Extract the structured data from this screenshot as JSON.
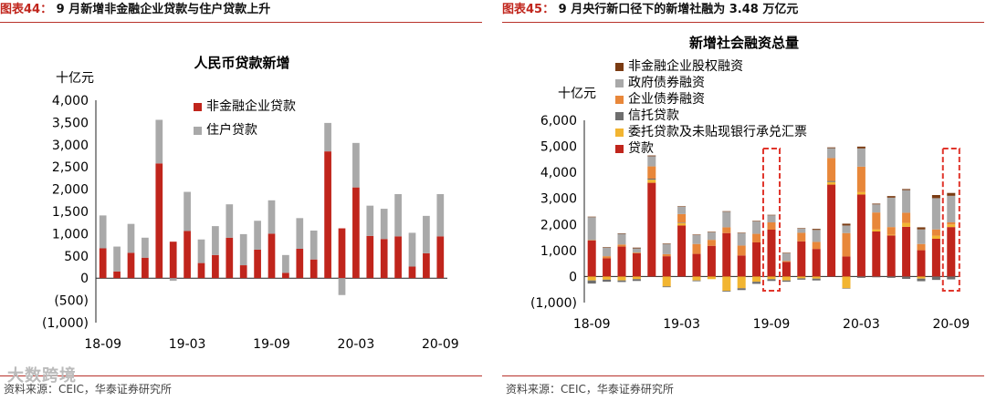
{
  "left_header": {
    "fig": "图表44：",
    "title": "9 月新增非金融企业贷款与住户贷款上升"
  },
  "right_header": {
    "fig": "图表45：",
    "title": "9 月央行新口径下的新增社融为 3.48 万亿元"
  },
  "left_source": "资料来源：CEIC，华泰证券研究所",
  "right_source": "资料来源：CEIC，华泰证券研究所",
  "watermark": "大数跨境",
  "colors": {
    "red": "#c0251c",
    "gray": "#a9a9a9",
    "dark_brown": "#7a3b12",
    "orange": "#e8873a",
    "dark_gray": "#6e6e6e",
    "yellow": "#f2b531",
    "highlight": "#e0352b",
    "accent": "#c0251c"
  },
  "chart_data": [
    {
      "type": "bar",
      "stacked": true,
      "title": "人民币贷款新增",
      "unit": "十亿元",
      "ylim": [
        -1000,
        4000
      ],
      "yticks": [
        "(1,000)",
        "(500)",
        "0",
        "500",
        "1,000",
        "1,500",
        "2,000",
        "2,500",
        "3,000",
        "3,500",
        "4,000"
      ],
      "xticks": [
        "18-09",
        "19-03",
        "19-09",
        "20-03",
        "20-09"
      ],
      "x": [
        "18-09",
        "18-10",
        "18-11",
        "18-12",
        "19-01",
        "19-02",
        "19-03",
        "19-04",
        "19-05",
        "19-06",
        "19-07",
        "19-08",
        "19-09",
        "19-10",
        "19-11",
        "19-12",
        "20-01",
        "20-02",
        "20-03",
        "20-04",
        "20-05",
        "20-06",
        "20-07",
        "20-08",
        "20-09"
      ],
      "series": [
        {
          "name": "非金融企业贷款",
          "color": "red",
          "values": [
            670,
            150,
            570,
            460,
            2580,
            820,
            1060,
            340,
            520,
            910,
            290,
            640,
            1000,
            120,
            660,
            420,
            2850,
            1120,
            2040,
            950,
            880,
            940,
            260,
            560,
            940
          ]
        },
        {
          "name": "住户贷款",
          "color": "gray",
          "values": [
            740,
            560,
            650,
            450,
            980,
            -60,
            880,
            530,
            650,
            750,
            700,
            650,
            750,
            400,
            690,
            650,
            640,
            -380,
            1000,
            680,
            680,
            950,
            760,
            840,
            950
          ]
        }
      ]
    },
    {
      "type": "bar",
      "stacked": true,
      "title": "新增社会融资总量",
      "unit": "十亿元",
      "ylim": [
        -1000,
        6000
      ],
      "yticks": [
        "(1,000)",
        "0",
        "1,000",
        "2,000",
        "3,000",
        "4,000",
        "5,000",
        "6,000"
      ],
      "xticks": [
        "18-09",
        "19-03",
        "19-09",
        "20-03",
        "20-09"
      ],
      "x": [
        "18-09",
        "18-10",
        "18-11",
        "18-12",
        "19-01",
        "19-02",
        "19-03",
        "19-04",
        "19-05",
        "19-06",
        "19-07",
        "19-08",
        "19-09",
        "19-10",
        "19-11",
        "19-12",
        "20-01",
        "20-02",
        "20-03",
        "20-04",
        "20-05",
        "20-06",
        "20-07",
        "20-08",
        "20-09"
      ],
      "highlight": [
        "19-09",
        "20-09"
      ],
      "series": [
        {
          "name": "贷款",
          "color": "red",
          "values": [
            1380,
            700,
            1150,
            890,
            3600,
            780,
            1960,
            870,
            1180,
            1670,
            810,
            1310,
            1800,
            560,
            1350,
            1060,
            3530,
            770,
            3150,
            1730,
            1580,
            1910,
            1010,
            1450,
            1900
          ]
        },
        {
          "name": "委托贷款及未贴现银行承兑汇票",
          "color": "yellow",
          "values": [
            -150,
            -120,
            -150,
            -100,
            120,
            -380,
            90,
            -150,
            -100,
            -550,
            -450,
            -200,
            -100,
            -150,
            -70,
            -80,
            100,
            -450,
            90,
            80,
            30,
            150,
            -80,
            120,
            100
          ]
        },
        {
          "name": "信托贷款",
          "color": "dark_gray",
          "values": [
            -120,
            -80,
            -60,
            -70,
            40,
            -30,
            20,
            -30,
            0,
            -30,
            -70,
            -80,
            -70,
            -50,
            -50,
            -70,
            40,
            -10,
            -50,
            -30,
            -50,
            -90,
            -100,
            -130,
            -110
          ]
        },
        {
          "name": "企业债券融资",
          "color": "orange",
          "values": [
            20,
            80,
            80,
            30,
            470,
            80,
            330,
            380,
            230,
            220,
            380,
            330,
            280,
            40,
            330,
            270,
            880,
            900,
            980,
            650,
            290,
            390,
            240,
            240,
            80
          ]
        },
        {
          "name": "政府债券融资",
          "color": "gray",
          "values": [
            880,
            330,
            420,
            160,
            390,
            390,
            280,
            340,
            290,
            600,
            470,
            480,
            270,
            290,
            160,
            460,
            380,
            290,
            700,
            310,
            1130,
            870,
            560,
            1200,
            1020
          ]
        },
        {
          "name": "非金融企业股权融资",
          "color": "dark_brown",
          "values": [
            20,
            20,
            10,
            30,
            30,
            20,
            20,
            20,
            20,
            20,
            20,
            20,
            20,
            20,
            20,
            40,
            30,
            70,
            70,
            30,
            60,
            40,
            80,
            120,
            110
          ]
        }
      ]
    }
  ]
}
